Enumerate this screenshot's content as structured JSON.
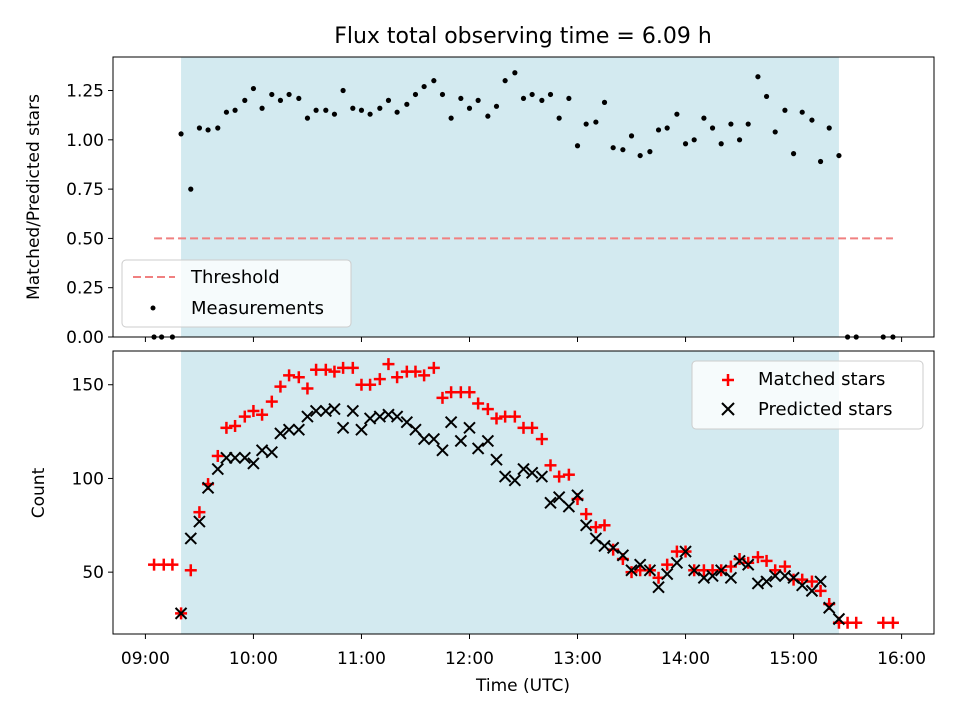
{
  "chart_data": [
    {
      "type": "scatter",
      "title": "Flux total observing time = 6.09 h",
      "xlabel": "",
      "ylabel": "Matched/Predicted stars",
      "xlim": [
        8.7,
        16.3
      ],
      "ylim": [
        0,
        1.42
      ],
      "yticks": [
        0,
        0.25,
        0.5,
        0.75,
        1.0,
        1.25
      ],
      "ytick_labels": [
        "0.00",
        "0.25",
        "0.50",
        "0.75",
        "1.00",
        "1.25"
      ],
      "shaded_region": {
        "x0": 9.33,
        "x1": 15.42,
        "color": "#d3eaf0"
      },
      "legend_location": "lower-left",
      "threshold": {
        "name": "Threshold",
        "y": 0.5,
        "x0": 9.08,
        "x1": 15.92,
        "color": "#f08080"
      },
      "series": [
        {
          "name": "Measurements",
          "color": "#000000",
          "x": [
            9.08,
            9.15,
            9.25,
            9.33,
            9.42,
            9.5,
            9.58,
            9.67,
            9.75,
            9.83,
            9.92,
            10.0,
            10.08,
            10.17,
            10.25,
            10.33,
            10.42,
            10.5,
            10.58,
            10.67,
            10.75,
            10.83,
            10.92,
            11.0,
            11.08,
            11.17,
            11.25,
            11.33,
            11.42,
            11.5,
            11.58,
            11.67,
            11.75,
            11.83,
            11.92,
            12.0,
            12.08,
            12.17,
            12.25,
            12.33,
            12.42,
            12.5,
            12.58,
            12.67,
            12.75,
            12.83,
            12.92,
            13.0,
            13.08,
            13.17,
            13.25,
            13.33,
            13.42,
            13.5,
            13.58,
            13.67,
            13.75,
            13.83,
            13.92,
            14.0,
            14.08,
            14.17,
            14.25,
            14.33,
            14.42,
            14.5,
            14.58,
            14.67,
            14.75,
            14.83,
            14.92,
            15.0,
            15.08,
            15.17,
            15.25,
            15.33,
            15.42,
            15.5,
            15.58,
            15.83,
            15.92
          ],
          "y": [
            0.0,
            0.0,
            0.0,
            1.03,
            0.75,
            1.06,
            1.05,
            1.06,
            1.14,
            1.15,
            1.2,
            1.26,
            1.16,
            1.23,
            1.2,
            1.23,
            1.21,
            1.11,
            1.15,
            1.15,
            1.13,
            1.25,
            1.16,
            1.15,
            1.13,
            1.16,
            1.2,
            1.14,
            1.18,
            1.23,
            1.27,
            1.3,
            1.23,
            1.11,
            1.21,
            1.16,
            1.2,
            1.12,
            1.17,
            1.3,
            1.34,
            1.21,
            1.23,
            1.2,
            1.23,
            1.11,
            1.21,
            0.97,
            1.08,
            1.09,
            1.19,
            0.96,
            0.95,
            1.02,
            0.92,
            0.94,
            1.05,
            1.06,
            1.13,
            0.98,
            1.0,
            1.11,
            1.06,
            0.98,
            1.08,
            1.0,
            1.08,
            1.32,
            1.22,
            1.04,
            1.15,
            0.93,
            1.14,
            1.1,
            0.89,
            1.06,
            0.92,
            0.0,
            0.0,
            0.0,
            0.0
          ]
        }
      ]
    },
    {
      "type": "scatter",
      "title": "",
      "xlabel": "Time (UTC)",
      "ylabel": "Count",
      "xlim": [
        8.7,
        16.3
      ],
      "ylim": [
        17,
        168
      ],
      "yticks": [
        50,
        100,
        150
      ],
      "ytick_labels": [
        "50",
        "100",
        "150"
      ],
      "xticks": [
        9,
        10,
        11,
        12,
        13,
        14,
        15,
        16
      ],
      "xtick_labels": [
        "09:00",
        "10:00",
        "11:00",
        "12:00",
        "13:00",
        "14:00",
        "15:00",
        "16:00"
      ],
      "shaded_region": {
        "x0": 9.33,
        "x1": 15.42,
        "color": "#d3eaf0"
      },
      "legend_location": "top-right",
      "series": [
        {
          "name": "Matched stars",
          "color": "#ff0000",
          "marker": "+",
          "x": [
            9.08,
            9.17,
            9.25,
            9.33,
            9.42,
            9.5,
            9.58,
            9.67,
            9.75,
            9.83,
            9.92,
            10.0,
            10.08,
            10.17,
            10.25,
            10.33,
            10.42,
            10.5,
            10.58,
            10.67,
            10.75,
            10.83,
            10.92,
            11.0,
            11.08,
            11.17,
            11.25,
            11.33,
            11.42,
            11.5,
            11.58,
            11.67,
            11.75,
            11.83,
            11.92,
            12.0,
            12.08,
            12.17,
            12.25,
            12.33,
            12.42,
            12.5,
            12.58,
            12.67,
            12.75,
            12.83,
            12.92,
            13.0,
            13.08,
            13.17,
            13.25,
            13.33,
            13.42,
            13.5,
            13.58,
            13.67,
            13.75,
            13.83,
            13.92,
            14.0,
            14.08,
            14.17,
            14.25,
            14.33,
            14.42,
            14.5,
            14.58,
            14.67,
            14.75,
            14.83,
            14.92,
            15.0,
            15.08,
            15.17,
            15.25,
            15.33,
            15.42,
            15.5,
            15.58,
            15.83,
            15.92
          ],
          "y": [
            54,
            54,
            54,
            28,
            51,
            82,
            97,
            112,
            127,
            128,
            133,
            136,
            134,
            141,
            149,
            155,
            154,
            148,
            158,
            158,
            157,
            159,
            159,
            150,
            150,
            153,
            161,
            154,
            157,
            157,
            155,
            159,
            143,
            146,
            146,
            146,
            140,
            137,
            132,
            133,
            133,
            127,
            127,
            121,
            107,
            101,
            102,
            89,
            81,
            74,
            75,
            62,
            57,
            50,
            51,
            51,
            47,
            54,
            61,
            61,
            51,
            51,
            51,
            51,
            53,
            57,
            55,
            58,
            56,
            51,
            53,
            46,
            46,
            45,
            40,
            33,
            23,
            23,
            23,
            23,
            23
          ]
        },
        {
          "name": "Predicted stars",
          "color": "#000000",
          "marker": "x",
          "x": [
            9.33,
            9.42,
            9.5,
            9.58,
            9.67,
            9.75,
            9.83,
            9.92,
            10.0,
            10.08,
            10.17,
            10.25,
            10.33,
            10.42,
            10.5,
            10.58,
            10.67,
            10.75,
            10.83,
            10.92,
            11.0,
            11.08,
            11.17,
            11.25,
            11.33,
            11.42,
            11.5,
            11.58,
            11.67,
            11.75,
            11.83,
            11.92,
            12.0,
            12.08,
            12.17,
            12.25,
            12.33,
            12.42,
            12.5,
            12.58,
            12.67,
            12.75,
            12.83,
            12.92,
            13.0,
            13.08,
            13.17,
            13.25,
            13.33,
            13.42,
            13.5,
            13.58,
            13.67,
            13.75,
            13.83,
            13.92,
            14.0,
            14.08,
            14.17,
            14.25,
            14.33,
            14.42,
            14.5,
            14.58,
            14.67,
            14.75,
            14.83,
            14.92,
            15.0,
            15.08,
            15.17,
            15.25,
            15.33,
            15.42
          ],
          "y": [
            28,
            68,
            77,
            95,
            105,
            111,
            111,
            111,
            108,
            115,
            114,
            124,
            126,
            126,
            133,
            136,
            136,
            137,
            127,
            136,
            126,
            132,
            133,
            134,
            133,
            130,
            126,
            121,
            121,
            115,
            130,
            120,
            127,
            116,
            120,
            110,
            101,
            99,
            105,
            103,
            101,
            87,
            90,
            85,
            91,
            75,
            68,
            64,
            63,
            59,
            51,
            54,
            51,
            42,
            49,
            55,
            61,
            51,
            47,
            48,
            51,
            47,
            56,
            54,
            44,
            45,
            48,
            48,
            47,
            43,
            40,
            45,
            31,
            25
          ]
        }
      ]
    }
  ]
}
